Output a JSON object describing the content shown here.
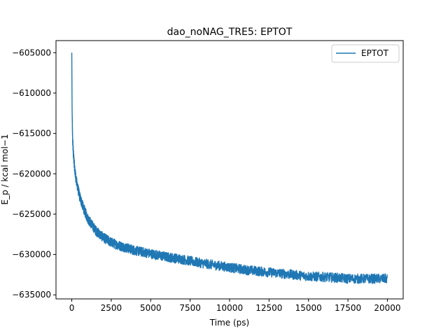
{
  "chart_data": {
    "type": "line",
    "title": "dao_noNAG_TRE5: EPTOT",
    "xlabel": "Time (ps)",
    "ylabel": "E_p / kcal mol−1",
    "xlim": [
      -1000,
      21000
    ],
    "ylim": [
      -635500,
      -603500
    ],
    "x_ticks": [
      0,
      2500,
      5000,
      7500,
      10000,
      12500,
      15000,
      17500,
      20000
    ],
    "x_tick_labels": [
      "0",
      "2500",
      "5000",
      "7500",
      "10000",
      "12500",
      "15000",
      "17500",
      "20000"
    ],
    "y_ticks": [
      -605000,
      -610000,
      -615000,
      -620000,
      -625000,
      -630000,
      -635000
    ],
    "y_tick_labels": [
      "−605000",
      "−610000",
      "−615000",
      "−620000",
      "−625000",
      "−630000",
      "−635000"
    ],
    "legend": {
      "position": "top-right",
      "entries": [
        "EPTOT"
      ]
    },
    "grid": false,
    "colors": {
      "series": "#1f77b4",
      "axes": "#000000",
      "background": "#ffffff"
    },
    "series": [
      {
        "name": "EPTOT",
        "x": [
          0,
          20,
          50,
          100,
          200,
          300,
          500,
          750,
          1000,
          1500,
          2000,
          2500,
          3000,
          4000,
          5000,
          6000,
          7000,
          7500,
          8000,
          9000,
          10000,
          11000,
          12000,
          12500,
          13000,
          14000,
          15000,
          16000,
          17000,
          17500,
          18000,
          19000,
          20000
        ],
        "y": [
          -605000,
          -612000,
          -615500,
          -617500,
          -619700,
          -621000,
          -622800,
          -624300,
          -625500,
          -627000,
          -627900,
          -628500,
          -628900,
          -629500,
          -629900,
          -630300,
          -630600,
          -630800,
          -631000,
          -631300,
          -631600,
          -631900,
          -632100,
          -632200,
          -632300,
          -632500,
          -632700,
          -632800,
          -632900,
          -633000,
          -633000,
          -633000,
          -633000
        ]
      }
    ]
  }
}
